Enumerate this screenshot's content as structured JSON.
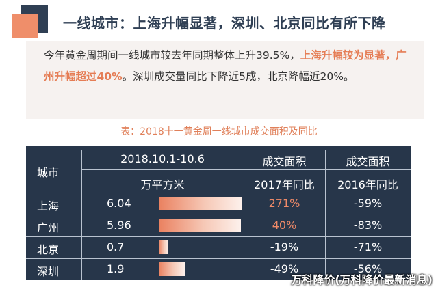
{
  "heading": "一线城市：上海升幅显著，深圳、北京同比有所下降",
  "summary": {
    "part1": "今年黄金周期间一线城市较去年同期整体上升39.5%，",
    "highlight": "上海升幅较为显著，广州升幅超过40%",
    "part2": "。深圳成交量同比下降近5成，北京降幅近20%。"
  },
  "caption": "表：2018十一黄金周一线城市成交面积及同比",
  "table": {
    "headers": {
      "city": "城市",
      "period": "2018.10.1-10.6",
      "unit": "万平方米",
      "area_label_1": "成交面积",
      "yoy_2017": "2017年同比",
      "area_label_2": "成交面积",
      "yoy_2016": "2016年同比"
    },
    "rows": [
      {
        "city": "上海",
        "area": "6.04",
        "area_value": 6.04,
        "yoy2017": "271%",
        "yoy2017_positive": true,
        "yoy2016": "-59%"
      },
      {
        "city": "广州",
        "area": "5.96",
        "area_value": 5.96,
        "yoy2017": "40%",
        "yoy2017_positive": true,
        "yoy2016": "-83%"
      },
      {
        "city": "北京",
        "area": "0.7",
        "area_value": 0.7,
        "yoy2017": "-19%",
        "yoy2017_positive": false,
        "yoy2016": "-71%"
      },
      {
        "city": "深圳",
        "area": "1.9",
        "area_value": 1.9,
        "yoy2017": "-49%",
        "yoy2017_positive": false,
        "yoy2016": "-56%"
      }
    ]
  },
  "watermark": "万科降价(万科降价最新消息)",
  "colors": {
    "accent": "#ef8e6a",
    "dark": "#2f3f54",
    "table_bg": "#27364a"
  }
}
